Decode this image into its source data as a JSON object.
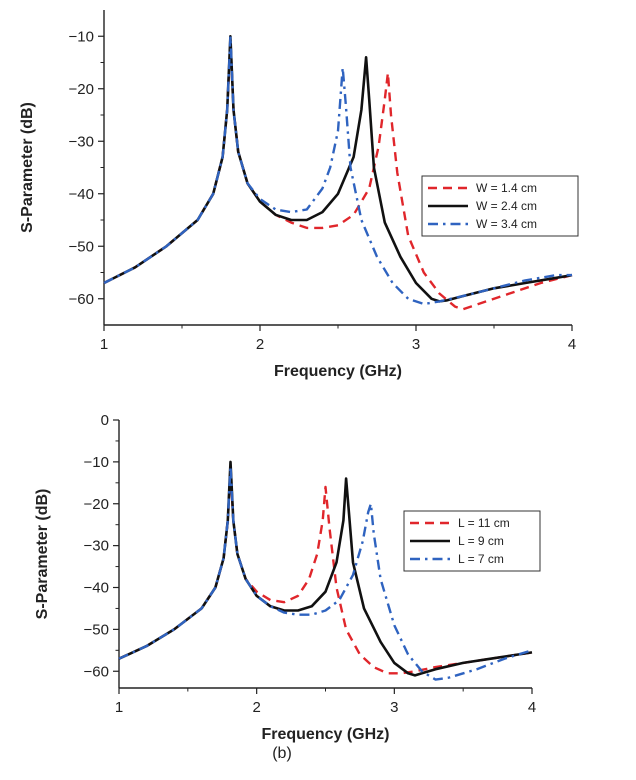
{
  "chart_data": [
    {
      "type": "line",
      "title": "",
      "xlabel": "Frequency (GHz)",
      "ylabel": "S-Parameter (dB)",
      "xlim": [
        1,
        4
      ],
      "ylim": [
        -65,
        -5
      ],
      "xticks": [
        1,
        2,
        3,
        4
      ],
      "yticks": [
        -10,
        -20,
        -30,
        -40,
        -50,
        -60
      ],
      "xtick_labels": [
        "1",
        "2",
        "3",
        "4"
      ],
      "ytick_labels": [
        "-10",
        "-20",
        "-30",
        "-40",
        "-50",
        "-60"
      ],
      "grid": false,
      "legend_position": "right",
      "series": [
        {
          "name": "W = 1.4 cm",
          "color": "#e0262b",
          "dash": "dash",
          "x": [
            1.0,
            1.2,
            1.4,
            1.6,
            1.7,
            1.76,
            1.79,
            1.81,
            1.83,
            1.86,
            1.92,
            2.0,
            2.1,
            2.2,
            2.3,
            2.4,
            2.5,
            2.6,
            2.7,
            2.76,
            2.8,
            2.82,
            2.84,
            2.88,
            2.95,
            3.05,
            3.15,
            3.25,
            3.3,
            3.4,
            3.6,
            3.8,
            4.0
          ],
          "y": [
            -57,
            -54,
            -50,
            -45,
            -40,
            -33,
            -24,
            -11,
            -24,
            -32,
            -38,
            -41.5,
            -44,
            -45.5,
            -46.5,
            -46.5,
            -46,
            -44,
            -39,
            -31,
            -22,
            -17,
            -25,
            -36,
            -48,
            -55,
            -59,
            -61.5,
            -62,
            -61,
            -59,
            -57,
            -55.5
          ]
        },
        {
          "name": "W = 2.4 cm",
          "color": "#111111",
          "dash": "solid",
          "x": [
            1.0,
            1.2,
            1.4,
            1.6,
            1.7,
            1.76,
            1.79,
            1.81,
            1.83,
            1.86,
            1.92,
            2.0,
            2.1,
            2.2,
            2.3,
            2.4,
            2.5,
            2.6,
            2.65,
            2.68,
            2.7,
            2.73,
            2.8,
            2.9,
            3.0,
            3.1,
            3.15,
            3.2,
            3.3,
            3.5,
            3.7,
            3.9,
            4.0
          ],
          "y": [
            -57,
            -54,
            -50,
            -45,
            -40,
            -33,
            -24,
            -10,
            -24,
            -32,
            -38,
            -41.5,
            -44,
            -45,
            -45,
            -43.5,
            -40,
            -33,
            -24,
            -14,
            -22,
            -35,
            -45.5,
            -52,
            -57,
            -60,
            -60.5,
            -60.3,
            -59.5,
            -58,
            -57,
            -56,
            -55.5
          ]
        },
        {
          "name": "W = 3.4 cm",
          "color": "#2f63c0",
          "dash": "dashdot",
          "x": [
            1.0,
            1.2,
            1.4,
            1.6,
            1.7,
            1.76,
            1.79,
            1.81,
            1.83,
            1.86,
            1.92,
            2.0,
            2.1,
            2.2,
            2.3,
            2.4,
            2.45,
            2.5,
            2.53,
            2.55,
            2.58,
            2.65,
            2.75,
            2.85,
            2.95,
            3.05,
            3.15,
            3.3,
            3.5,
            3.7,
            3.9,
            4.0
          ],
          "y": [
            -57,
            -54,
            -50,
            -45,
            -40,
            -33,
            -24,
            -10,
            -24,
            -32,
            -38,
            -41,
            -43,
            -43.5,
            -43,
            -39,
            -35,
            -28,
            -16,
            -23,
            -35,
            -45,
            -52,
            -57,
            -60,
            -61,
            -60.5,
            -59.5,
            -58,
            -56.5,
            -55.5,
            -55.5
          ]
        }
      ]
    },
    {
      "type": "line",
      "title": "",
      "xlabel": "Frequency (GHz)",
      "ylabel": "S-Parameter (dB)",
      "xlim": [
        1,
        4
      ],
      "ylim": [
        -64,
        0
      ],
      "xticks": [
        1,
        2,
        3,
        4
      ],
      "yticks": [
        0,
        -10,
        -20,
        -30,
        -40,
        -50,
        -60
      ],
      "xtick_labels": [
        "1",
        "2",
        "3",
        "4"
      ],
      "ytick_labels": [
        "0",
        "-10",
        "-20",
        "-30",
        "-40",
        "-50",
        "-60"
      ],
      "grid": false,
      "legend_position": "right",
      "caption": "(b)",
      "series": [
        {
          "name": "L = 11 cm",
          "color": "#e0262b",
          "dash": "dash",
          "x": [
            1.0,
            1.2,
            1.4,
            1.6,
            1.7,
            1.76,
            1.79,
            1.81,
            1.83,
            1.86,
            1.92,
            2.0,
            2.1,
            2.2,
            2.3,
            2.38,
            2.44,
            2.48,
            2.5,
            2.53,
            2.58,
            2.65,
            2.75,
            2.85,
            2.95,
            3.05,
            3.15,
            3.3,
            3.5,
            3.7,
            3.9,
            4.0
          ],
          "y": [
            -57,
            -54,
            -50,
            -45,
            -40,
            -33,
            -24,
            -12,
            -24,
            -32,
            -38,
            -41,
            -43,
            -43.5,
            -42,
            -38,
            -32,
            -24,
            -16,
            -26,
            -40,
            -50,
            -56,
            -59,
            -60.5,
            -60.5,
            -60,
            -59,
            -58,
            -57,
            -56,
            -55.5
          ]
        },
        {
          "name": "L = 9 cm",
          "color": "#111111",
          "dash": "solid",
          "x": [
            1.0,
            1.2,
            1.4,
            1.6,
            1.7,
            1.76,
            1.79,
            1.81,
            1.83,
            1.86,
            1.92,
            2.0,
            2.1,
            2.2,
            2.3,
            2.4,
            2.5,
            2.58,
            2.63,
            2.65,
            2.67,
            2.7,
            2.78,
            2.9,
            3.0,
            3.1,
            3.15,
            3.2,
            3.3,
            3.5,
            3.7,
            3.9,
            4.0
          ],
          "y": [
            -57,
            -54,
            -50,
            -45,
            -40,
            -33,
            -24,
            -10,
            -24,
            -32,
            -38,
            -42,
            -44.5,
            -45.5,
            -45.5,
            -44.5,
            -41,
            -34,
            -24,
            -14,
            -22,
            -34,
            -45,
            -53,
            -58,
            -60.5,
            -61,
            -60.5,
            -59.5,
            -58,
            -57,
            -56,
            -55.5
          ]
        },
        {
          "name": "L = 7 cm",
          "color": "#2f63c0",
          "dash": "dashdot",
          "x": [
            1.0,
            1.2,
            1.4,
            1.6,
            1.7,
            1.76,
            1.79,
            1.81,
            1.83,
            1.86,
            1.92,
            2.0,
            2.1,
            2.2,
            2.3,
            2.4,
            2.5,
            2.6,
            2.7,
            2.77,
            2.81,
            2.83,
            2.85,
            2.9,
            3.0,
            3.1,
            3.2,
            3.3,
            3.4,
            3.6,
            3.8,
            4.0
          ],
          "y": [
            -57,
            -54,
            -50,
            -45,
            -40,
            -33,
            -24,
            -11,
            -24,
            -32,
            -38,
            -42,
            -44.5,
            -46,
            -46.5,
            -46.5,
            -45.5,
            -43,
            -37,
            -29,
            -22,
            -20,
            -27,
            -38,
            -49,
            -56,
            -60,
            -62,
            -61.5,
            -59.5,
            -57,
            -55
          ]
        }
      ]
    }
  ]
}
